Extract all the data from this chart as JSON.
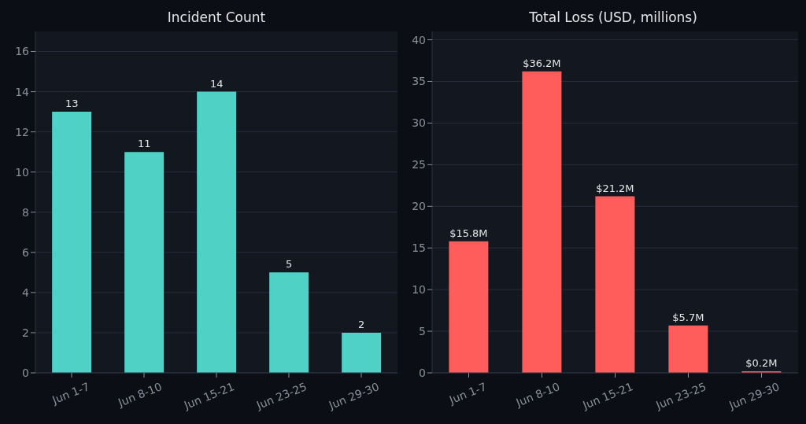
{
  "chart_data": [
    {
      "type": "bar",
      "title": "Incident Count",
      "categories": [
        "Jun 1-7",
        "Jun 8-10",
        "Jun 15-21",
        "Jun 23-25",
        "Jun 29-30"
      ],
      "values": [
        13,
        11,
        14,
        5,
        2
      ],
      "color": "#4fd1c5",
      "ylim": [
        0,
        17
      ],
      "yticks": [
        0,
        2,
        4,
        6,
        8,
        10,
        12,
        14,
        16
      ],
      "grid": "y",
      "data_labels": true
    },
    {
      "type": "bar",
      "title": "Total Loss (USD, millions)",
      "categories": [
        "Jun 1-7",
        "Jun 8-10",
        "Jun 15-21",
        "Jun 23-25",
        "Jun 29-30"
      ],
      "values": [
        15.8,
        36.2,
        21.2,
        5.7,
        0.2
      ],
      "color": "#ff5c5c",
      "ylim": [
        0,
        41
      ],
      "yticks": [
        0,
        5,
        10,
        15,
        20,
        25,
        30,
        35,
        40
      ],
      "grid": "y",
      "value_labels": [
        "$15.8M",
        "$36.2M",
        "$21.2M",
        "$5.7M",
        "$0.2M"
      ]
    }
  ]
}
